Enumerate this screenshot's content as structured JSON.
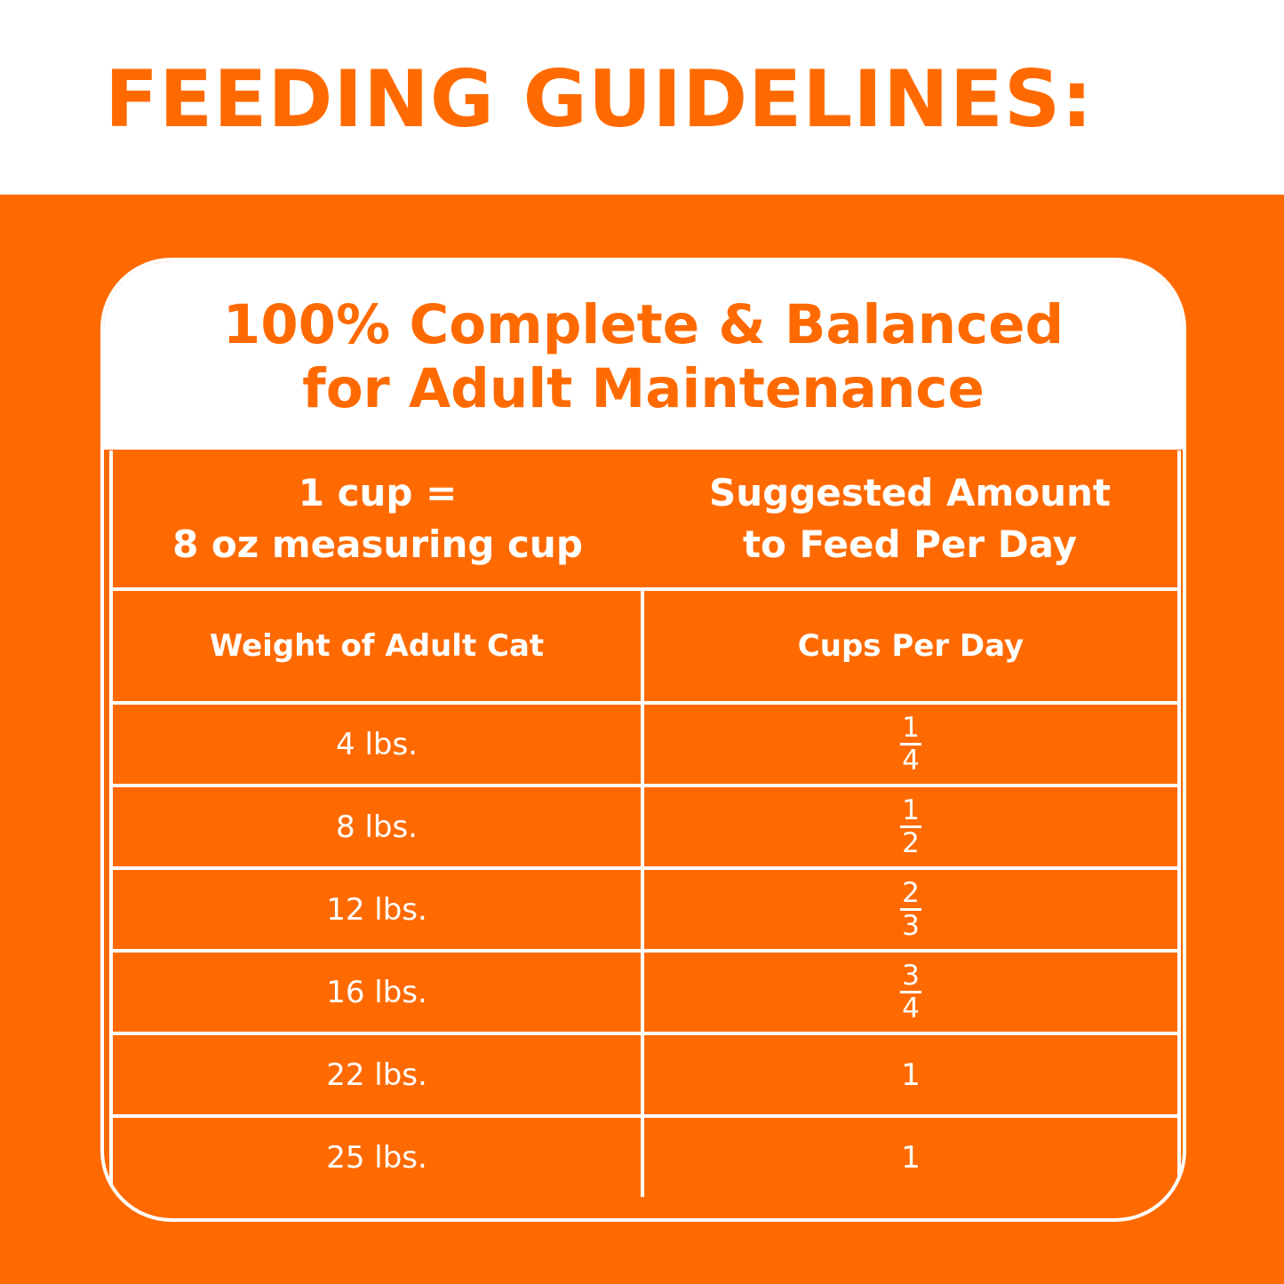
{
  "page": {
    "title": "FEEDING GUIDELINES:"
  },
  "card": {
    "title_line1": "100% Complete & Balanced",
    "title_line2": "for Adult Maintenance"
  },
  "table": {
    "header_left_line1": "1 cup =",
    "header_left_line2": "8 oz measuring cup",
    "header_right_line1": "Suggested Amount",
    "header_right_line2": "to Feed Per Day",
    "col_weight": "Weight of Adult Cat",
    "col_cups": "Cups Per Day",
    "rows": [
      {
        "weight": "4 lbs.",
        "num": "1",
        "den": "4"
      },
      {
        "weight": "8 lbs.",
        "num": "1",
        "den": "2"
      },
      {
        "weight": "12 lbs.",
        "num": "2",
        "den": "3"
      },
      {
        "weight": "16 lbs.",
        "num": "3",
        "den": "4"
      },
      {
        "weight": "22 lbs.",
        "cups": "1"
      },
      {
        "weight": "25 lbs.",
        "cups": "1"
      }
    ]
  },
  "colors": {
    "accent": "#ff6a00",
    "background": "#ffffff"
  }
}
